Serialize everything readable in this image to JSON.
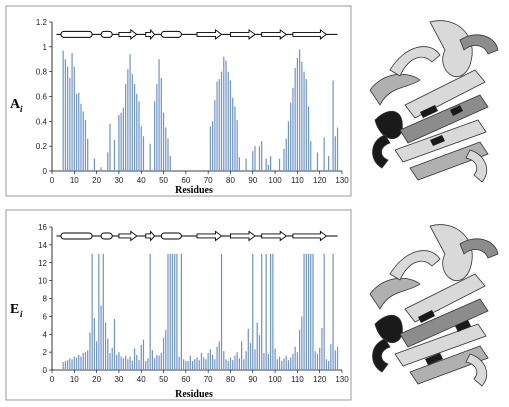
{
  "chart_data": [
    {
      "type": "bar",
      "ylabel": "A",
      "ylabel_sub": "i",
      "xlabel": "Residues",
      "xlim": [
        0,
        130
      ],
      "ylim": [
        0,
        1.2
      ],
      "x_ticks": [
        0,
        10,
        20,
        30,
        40,
        50,
        60,
        70,
        80,
        90,
        100,
        110,
        120,
        130
      ],
      "y_ticks": [
        "0",
        "0.2",
        "0.4",
        "0.6",
        "0.8",
        "1",
        "1.2"
      ],
      "y_tick_values": [
        0,
        0.2,
        0.4,
        0.6,
        0.8,
        1.0,
        1.2
      ],
      "x": [
        5,
        6,
        7,
        8,
        9,
        10,
        11,
        12,
        13,
        14,
        15,
        16,
        19,
        22,
        25,
        26,
        28,
        30,
        31,
        32,
        33,
        34,
        35,
        36,
        37,
        38,
        39,
        40,
        41,
        44,
        46,
        47,
        48,
        49,
        50,
        51,
        52,
        53,
        71,
        72,
        73,
        74,
        75,
        76,
        77,
        78,
        79,
        80,
        81,
        82,
        83,
        84,
        87,
        90,
        91,
        93,
        94,
        96,
        97,
        98,
        102,
        104,
        105,
        106,
        107,
        108,
        109,
        110,
        111,
        112,
        113,
        114,
        115,
        116,
        119,
        122,
        124,
        126,
        127,
        128
      ],
      "values": [
        0.97,
        0.9,
        0.84,
        0.75,
        0.95,
        0.84,
        0.62,
        0.63,
        0.54,
        0.48,
        0.41,
        0.26,
        0.1,
        0.03,
        0.15,
        0.38,
        0.25,
        0.45,
        0.47,
        0.51,
        0.7,
        0.82,
        0.94,
        0.78,
        0.7,
        0.62,
        0.56,
        0.36,
        0.28,
        0.22,
        0.56,
        0.7,
        0.9,
        0.75,
        0.47,
        0.35,
        0.26,
        0.12,
        0.36,
        0.4,
        0.57,
        0.72,
        0.74,
        0.8,
        0.92,
        0.89,
        0.8,
        0.73,
        0.59,
        0.52,
        0.41,
        0.11,
        0.1,
        0.16,
        0.2,
        0.2,
        0.24,
        0.1,
        0.05,
        0.12,
        0.1,
        0.18,
        0.26,
        0.4,
        0.55,
        0.67,
        0.83,
        0.91,
        0.98,
        0.88,
        0.8,
        0.74,
        0.52,
        0.24,
        0.15,
        0.27,
        0.12,
        0.73,
        0.28,
        0.35
      ],
      "color": "#6f96cc"
    },
    {
      "type": "bar",
      "ylabel": "E",
      "ylabel_sub": "i",
      "xlabel": "Residues",
      "xlim": [
        0,
        130
      ],
      "ylim": [
        0,
        16
      ],
      "x_ticks": [
        0,
        10,
        20,
        30,
        40,
        50,
        60,
        70,
        80,
        90,
        100,
        110,
        120,
        130
      ],
      "y_ticks": [
        "0",
        "2",
        "4",
        "6",
        "8",
        "10",
        "12",
        "14",
        "16"
      ],
      "y_tick_values": [
        0,
        2,
        4,
        6,
        8,
        10,
        12,
        14,
        16
      ],
      "x": [
        5,
        6,
        7,
        8,
        9,
        10,
        11,
        12,
        13,
        14,
        15,
        16,
        17,
        18,
        19,
        20,
        21,
        22,
        23,
        24,
        25,
        26,
        27,
        28,
        29,
        30,
        31,
        32,
        33,
        34,
        35,
        36,
        37,
        38,
        39,
        40,
        41,
        42,
        43,
        44,
        45,
        46,
        47,
        48,
        49,
        50,
        51,
        52,
        53,
        54,
        55,
        56,
        57,
        58,
        59,
        60,
        61,
        62,
        63,
        64,
        65,
        66,
        67,
        68,
        69,
        70,
        71,
        72,
        73,
        74,
        75,
        76,
        77,
        78,
        79,
        80,
        81,
        82,
        83,
        84,
        85,
        86,
        87,
        88,
        89,
        90,
        91,
        92,
        93,
        94,
        95,
        96,
        97,
        98,
        99,
        100,
        101,
        102,
        103,
        104,
        105,
        106,
        107,
        108,
        109,
        110,
        111,
        112,
        113,
        114,
        115,
        116,
        117,
        118,
        119,
        120,
        121,
        122,
        123,
        124,
        125,
        126,
        127,
        128
      ],
      "values": [
        0.9,
        1.0,
        1.1,
        1.3,
        1.2,
        1.5,
        1.4,
        1.7,
        1.5,
        1.9,
        2.0,
        2.2,
        4.2,
        13,
        5.8,
        3.2,
        13,
        7.2,
        13,
        5.3,
        3.5,
        1.9,
        2.5,
        5.7,
        1.7,
        2.0,
        1.5,
        1.3,
        1.6,
        1.2,
        1.5,
        1.0,
        2.4,
        1.7,
        1.1,
        2.8,
        3.4,
        1.0,
        1.3,
        13,
        2.2,
        1.3,
        1.7,
        1.6,
        1.9,
        3.6,
        4.5,
        13,
        13,
        13,
        13,
        13,
        1.5,
        13,
        1.2,
        1.0,
        1.0,
        1.6,
        1.0,
        1.2,
        1.4,
        1.1,
        1.9,
        1.4,
        1.2,
        1.9,
        2.3,
        1.7,
        1.2,
        2.6,
        3.2,
        13,
        2.1,
        1.2,
        1.0,
        1.4,
        1.1,
        1.6,
        2.0,
        1.3,
        3.2,
        1.2,
        2.1,
        4.6,
        3.0,
        13,
        2.3,
        5.3,
        3.9,
        13,
        1.9,
        13,
        1.8,
        13,
        13,
        2.4,
        1.2,
        1.5,
        1.0,
        1.3,
        1.6,
        1.1,
        1.4,
        1.8,
        2.6,
        2.0,
        4.5,
        6.0,
        13,
        13,
        13,
        13,
        13,
        2.1,
        1.8,
        2.5,
        4.7,
        13,
        1.2,
        1.0,
        2.9,
        13,
        2.2,
        2.6
      ],
      "color": "#6f96cc"
    }
  ],
  "secondary_structure": [
    {
      "type": "helix",
      "start": 4,
      "end": 18
    },
    {
      "type": "helix",
      "start": 22,
      "end": 27
    },
    {
      "type": "strand",
      "start": 30,
      "end": 38
    },
    {
      "type": "strand",
      "start": 42,
      "end": 46
    },
    {
      "type": "helix",
      "start": 49,
      "end": 58
    },
    {
      "type": "strand",
      "start": 65,
      "end": 76
    },
    {
      "type": "strand",
      "start": 80,
      "end": 91
    },
    {
      "type": "strand",
      "start": 94,
      "end": 105
    },
    {
      "type": "strand",
      "start": 108,
      "end": 123
    }
  ],
  "panels": [
    {
      "image_label": "protein-ribbon-structure"
    },
    {
      "image_label": "protein-ribbon-structure"
    }
  ]
}
